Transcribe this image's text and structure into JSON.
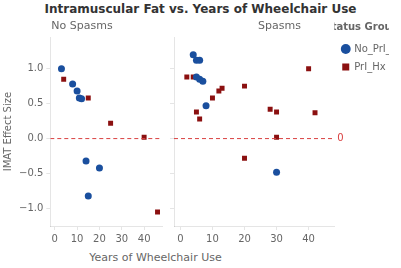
{
  "title": "Intramuscular Fat vs. Years of Wheelchair Use",
  "xlabel": "Years of Wheelchair Use",
  "chart_data": [
    {
      "type": "scatter",
      "title": "No Spasms",
      "ylabel": "IMAT Effect Size",
      "xlim": [
        -2,
        48
      ],
      "ylim": [
        -1.25,
        1.45
      ],
      "xticks": [
        0,
        10,
        20,
        30,
        40
      ],
      "yticks": [
        {
          "value": -1.0,
          "label": "−1.0"
        },
        {
          "value": -0.5,
          "label": "−0.5"
        },
        {
          "value": 0.0,
          "label": "0.0"
        },
        {
          "value": 0.5,
          "label": "0.5"
        },
        {
          "value": 1.0,
          "label": "1.0"
        }
      ],
      "grid": false,
      "reference_lines": [
        {
          "y": 0.0,
          "color": "#d94040",
          "line_style": "dashed"
        }
      ],
      "series": [
        {
          "name": "No_PrI_Hx",
          "color": "#1a4f9e",
          "marker": "circle",
          "values": [
            [
              3,
              1.0
            ],
            [
              8,
              0.78
            ],
            [
              10,
              0.68
            ],
            [
              11,
              0.58
            ],
            [
              12,
              0.57
            ],
            [
              14,
              -0.32
            ],
            [
              20,
              -0.42
            ],
            [
              15,
              -0.82
            ]
          ]
        },
        {
          "name": "PrI_Hx",
          "color": "#8b1010",
          "marker": "square",
          "values": [
            [
              4,
              0.85
            ],
            [
              15,
              0.58
            ],
            [
              25,
              0.22
            ],
            [
              40,
              0.02
            ],
            [
              46,
              -1.05
            ]
          ]
        }
      ]
    },
    {
      "type": "scatter",
      "title": "Spasms",
      "xlim": [
        -2,
        48
      ],
      "ylim": [
        -1.25,
        1.45
      ],
      "xticks": [
        0,
        10,
        20,
        30,
        40
      ],
      "yticks": [
        {
          "value": -1.0,
          "label": "−1.0"
        },
        {
          "value": -0.5,
          "label": "−0.5"
        },
        {
          "value": 0.0,
          "label": "0.0"
        },
        {
          "value": 0.5,
          "label": "0.5"
        },
        {
          "value": 1.0,
          "label": "1.0"
        }
      ],
      "grid": false,
      "tick_labels": "x",
      "legend": "right",
      "legend_title": "Status Group",
      "reference_lines": [
        {
          "y": 0.0,
          "color": "#d94040",
          "line_style": "dashed",
          "label": "0"
        }
      ],
      "series": [
        {
          "name": "No_PrI_Hx",
          "color": "#1a4f9e",
          "marker": "circle",
          "values": [
            [
              4,
              1.2
            ],
            [
              5,
              1.12
            ],
            [
              6,
              1.12
            ],
            [
              5,
              0.88
            ],
            [
              6,
              0.85
            ],
            [
              7,
              0.82
            ],
            [
              8,
              0.47
            ],
            [
              30,
              -0.48
            ]
          ]
        },
        {
          "name": "PrI_Hx",
          "color": "#8b1010",
          "marker": "square",
          "values": [
            [
              2,
              0.88
            ],
            [
              4,
              0.88
            ],
            [
              5,
              0.38
            ],
            [
              6,
              0.28
            ],
            [
              10,
              0.58
            ],
            [
              12,
              0.68
            ],
            [
              13,
              0.72
            ],
            [
              20,
              0.75
            ],
            [
              20,
              -0.28
            ],
            [
              28,
              0.42
            ],
            [
              30,
              0.38
            ],
            [
              30,
              0.02
            ],
            [
              40,
              1.0
            ],
            [
              42,
              0.37
            ]
          ]
        }
      ]
    }
  ]
}
